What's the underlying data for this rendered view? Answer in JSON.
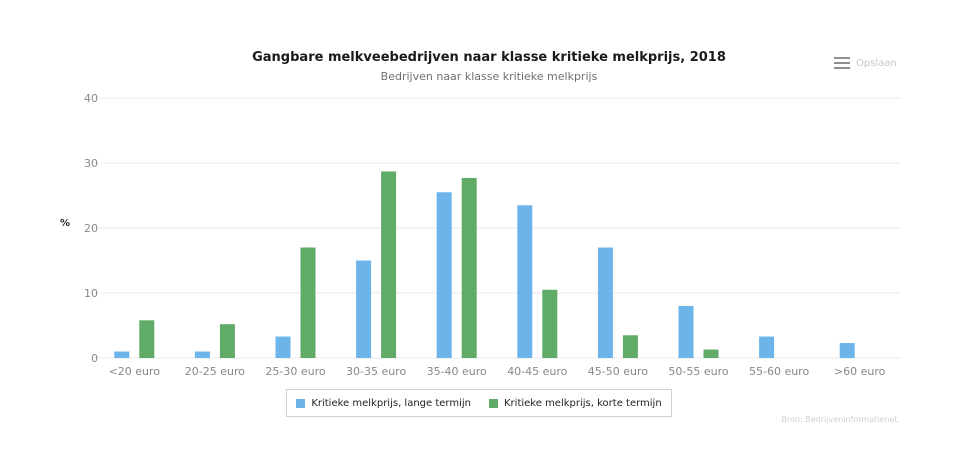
{
  "header": {
    "title": "Gangbare melkveebedrijven naar klasse kritieke melkprijs, 2018",
    "subtitle": "Bedrijven naar klasse kritieke melkprijs",
    "menu_label": "Opslaan",
    "menu_icon": "hamburger-menu-icon"
  },
  "source": "Bron: Bedrijveninformatienet.",
  "colors": {
    "lange": "#6cb4ea",
    "korte": "#61ab68",
    "grid": "#ebebeb",
    "tick": "#888888"
  },
  "chart_data": {
    "type": "bar",
    "title": "Gangbare melkveebedrijven naar klasse kritieke melkprijs, 2018",
    "subtitle": "Bedrijven naar klasse kritieke melkprijs",
    "xlabel": "",
    "ylabel": "%",
    "ylim": [
      0,
      40
    ],
    "yticks": [
      0,
      10,
      20,
      30,
      40
    ],
    "grid": true,
    "legend_position": "bottom",
    "categories": [
      "<20 euro",
      "20-25 euro",
      "25-30 euro",
      "30-35 euro",
      "35-40 euro",
      "40-45 euro",
      "45-50 euro",
      "50-55 euro",
      "55-60 euro",
      ">60 euro"
    ],
    "series": [
      {
        "name": "Kritieke melkprijs, lange termijn",
        "values": [
          1.0,
          1.0,
          3.3,
          15.0,
          25.5,
          23.5,
          17.0,
          8.0,
          3.3,
          2.3
        ]
      },
      {
        "name": "Kritieke melkprijs, korte termijn",
        "values": [
          5.8,
          5.2,
          17.0,
          28.7,
          27.7,
          10.5,
          3.5,
          1.3,
          0,
          0
        ]
      }
    ]
  }
}
